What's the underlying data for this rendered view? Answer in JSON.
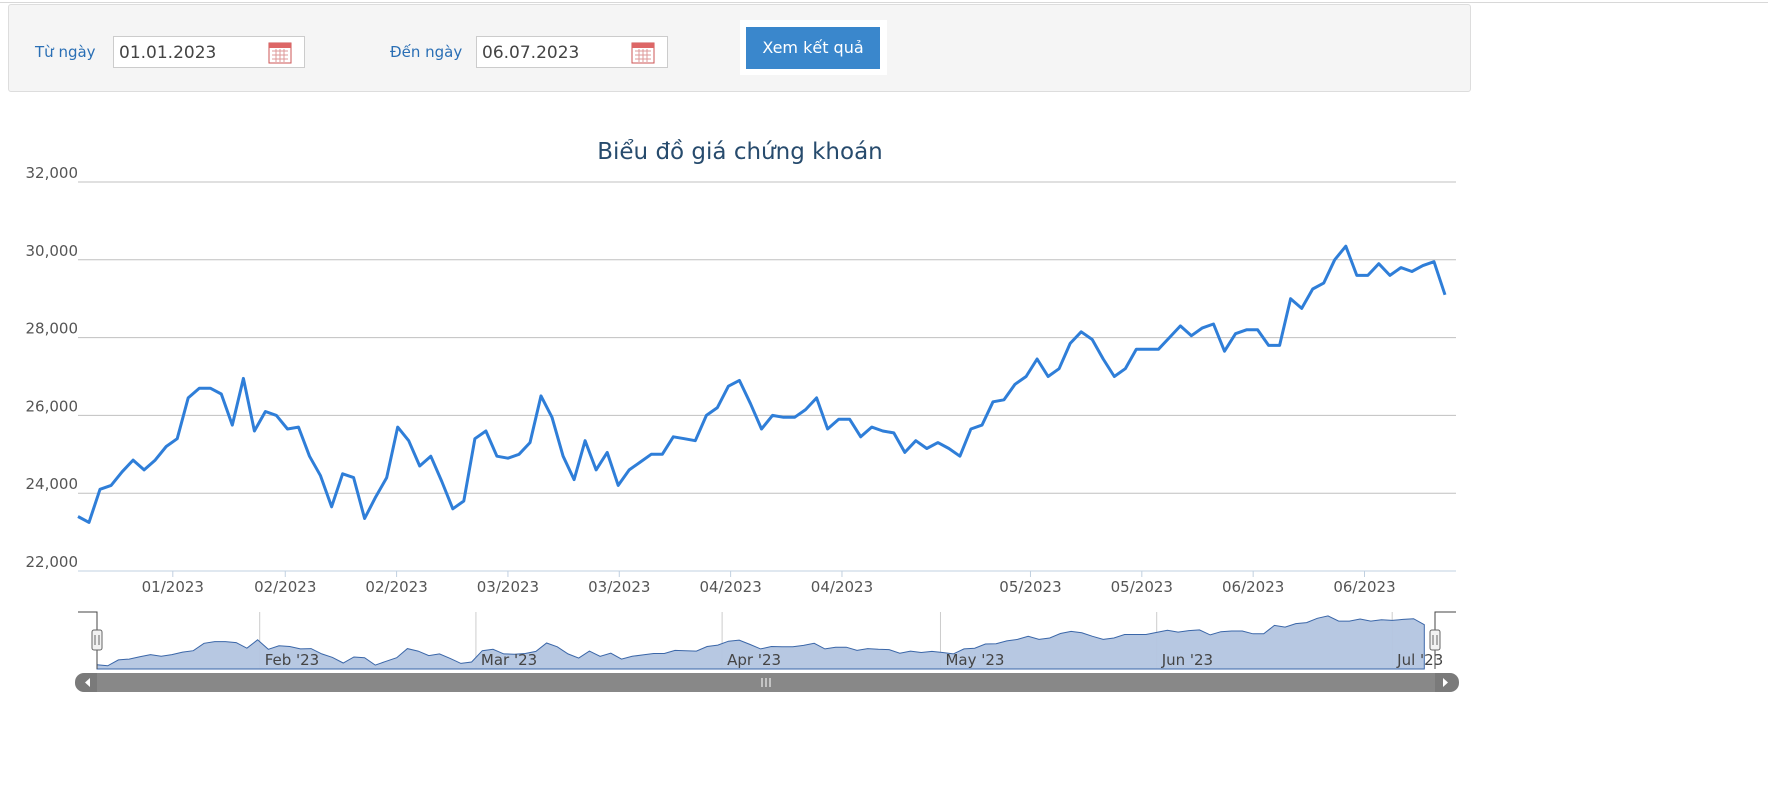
{
  "form": {
    "from_label": "Từ ngày",
    "from_value": "01.01.2023",
    "to_label": "Đến ngày",
    "to_value": "06.07.2023",
    "submit": "Xem kết quả"
  },
  "chart_data": {
    "type": "line",
    "title": "Biểu đồ giá chứng khoán",
    "color": "#2f7ed8",
    "values": [
      23400,
      23250,
      24100,
      24200,
      24550,
      24850,
      24600,
      24850,
      25200,
      25400,
      26450,
      26700,
      26700,
      26550,
      25750,
      26950,
      25600,
      26100,
      26000,
      25650,
      25700,
      24950,
      24450,
      23650,
      24500,
      24400,
      23350,
      23900,
      24400,
      25700,
      25350,
      24700,
      24950,
      24300,
      23600,
      23800,
      25400,
      25600,
      24950,
      24900,
      25000,
      25300,
      26500,
      25950,
      24950,
      24350,
      25350,
      24600,
      25050,
      24200,
      24600,
      24800,
      25000,
      25000,
      25450,
      25400,
      25350,
      26000,
      26200,
      26750,
      26900,
      26300,
      25650,
      26000,
      25950,
      25950,
      26150,
      26450,
      25650,
      25900,
      25900,
      25450,
      25700,
      25600,
      25550,
      25050,
      25350,
      25150,
      25300,
      25150,
      24950,
      25650,
      25750,
      26350,
      26400,
      26800,
      27000,
      27450,
      27000,
      27200,
      27850,
      28150,
      27950,
      27450,
      27000,
      27200,
      27700,
      27700,
      27700,
      28000,
      28300,
      28050,
      28250,
      28350,
      27650,
      28100,
      28200,
      28200,
      27800,
      27800,
      29000,
      28750,
      29250,
      29400,
      30000,
      30350,
      29600,
      29600,
      29900,
      29600,
      29800,
      29700,
      29850,
      29950,
      29100
    ],
    "xlim": [
      0,
      125
    ],
    "xticks": [
      {
        "value": 8.6,
        "label": "01/2023"
      },
      {
        "value": 18.8,
        "label": "02/2023"
      },
      {
        "value": 28.9,
        "label": "02/2023"
      },
      {
        "value": 39.0,
        "label": "03/2023"
      },
      {
        "value": 49.1,
        "label": "03/2023"
      },
      {
        "value": 59.2,
        "label": "04/2023"
      },
      {
        "value": 69.3,
        "label": "04/2023"
      },
      {
        "value": 86.4,
        "label": "05/2023"
      },
      {
        "value": 96.5,
        "label": "05/2023"
      },
      {
        "value": 106.6,
        "label": "06/2023"
      },
      {
        "value": 116.7,
        "label": "06/2023"
      }
    ],
    "ylim": [
      22000,
      32000
    ],
    "yticks": [
      {
        "value": 22000,
        "label": "22,000"
      },
      {
        "value": 24000,
        "label": "24,000"
      },
      {
        "value": 26000,
        "label": "26,000"
      },
      {
        "value": 28000,
        "label": "28,000"
      },
      {
        "value": 30000,
        "label": "30,000"
      },
      {
        "value": 32000,
        "label": "32,000"
      }
    ],
    "grid": true,
    "navigator": {
      "color": "#b3c5e0",
      "ylim": [
        22800,
        30900
      ],
      "xticks": [
        {
          "value": 15.2,
          "label": "Feb '23"
        },
        {
          "value": 35.4,
          "label": "Mar '23"
        },
        {
          "value": 58.4,
          "label": "Apr '23"
        },
        {
          "value": 78.8,
          "label": "May '23"
        },
        {
          "value": 99.0,
          "label": "Jun '23"
        },
        {
          "value": 121.0,
          "label": "Jul '23"
        }
      ]
    }
  }
}
